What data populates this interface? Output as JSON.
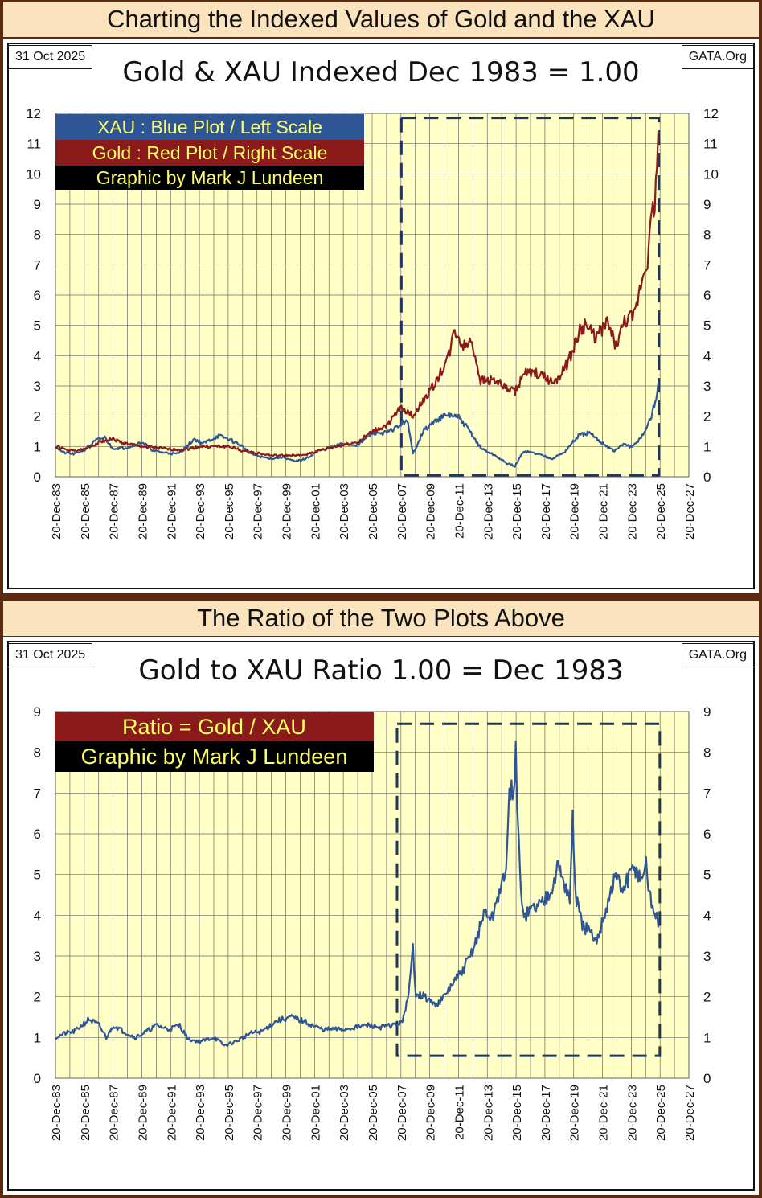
{
  "top_banner": "Charting the Indexed Values of Gold and the XAU",
  "mid_banner": "The Ratio of the Two Plots Above",
  "colors": {
    "xau": "#2e5596",
    "gold": "#8b1a1a",
    "plot_bg": "#ffffc6",
    "box": "#1f3658",
    "legend_blue": "#2e5596",
    "legend_red": "#8b1a1a",
    "legend_black": "#000000",
    "legend_text": "#ffff66"
  },
  "chart1": {
    "date": "31 Oct 2025",
    "site": "GATA.Org",
    "title": "Gold & XAU Indexed Dec 1983 = 1.00",
    "legend": [
      "XAU : Blue Plot / Left Scale",
      "Gold : Red Plot / Right Scale",
      "Graphic by Mark J Lundeen"
    ]
  },
  "chart2": {
    "date": "31 Oct 2025",
    "site": "GATA.Org",
    "title": "Gold to XAU Ratio 1.00 = Dec 1983",
    "legend": [
      "Ratio = Gold / XAU",
      "Graphic by Mark J Lundeen"
    ]
  },
  "chart_data": [
    {
      "type": "line",
      "title": "Gold & XAU Indexed Dec 1983 = 1.00",
      "ylim": [
        0,
        12
      ],
      "y_ticks": [
        0,
        1,
        2,
        3,
        4,
        5,
        6,
        7,
        8,
        9,
        10,
        11,
        12
      ],
      "x_range": [
        1983.97,
        2027.97
      ],
      "x_ticks": [
        "20-Dec-83",
        "20-Dec-85",
        "20-Dec-87",
        "20-Dec-89",
        "20-Dec-91",
        "20-Dec-93",
        "20-Dec-95",
        "20-Dec-97",
        "20-Dec-99",
        "20-Dec-01",
        "20-Dec-03",
        "20-Dec-05",
        "20-Dec-07",
        "20-Dec-09",
        "20-Dec-11",
        "20-Dec-13",
        "20-Dec-15",
        "20-Dec-17",
        "20-Dec-19",
        "20-Dec-21",
        "20-Dec-23",
        "20-Dec-25",
        "20-Dec-27"
      ],
      "highlight_box": {
        "x": [
          2008.0,
          2025.9
        ],
        "y": [
          0.05,
          11.85
        ]
      },
      "series": [
        {
          "name": "XAU",
          "color": "#2e5596",
          "points": [
            [
              1984.0,
              1.0
            ],
            [
              1984.5,
              0.8
            ],
            [
              1985.3,
              0.75
            ],
            [
              1986.0,
              0.9
            ],
            [
              1986.8,
              1.2
            ],
            [
              1987.4,
              1.3
            ],
            [
              1987.9,
              0.95
            ],
            [
              1988.7,
              0.95
            ],
            [
              1989.5,
              1.05
            ],
            [
              1990.0,
              1.15
            ],
            [
              1990.8,
              0.85
            ],
            [
              1991.5,
              0.8
            ],
            [
              1992.4,
              0.75
            ],
            [
              1993.0,
              0.95
            ],
            [
              1993.6,
              1.25
            ],
            [
              1994.2,
              1.1
            ],
            [
              1995.3,
              1.35
            ],
            [
              1996.0,
              1.25
            ],
            [
              1996.8,
              1.05
            ],
            [
              1997.6,
              0.75
            ],
            [
              1998.3,
              0.65
            ],
            [
              1999.0,
              0.6
            ],
            [
              1999.8,
              0.65
            ],
            [
              2000.6,
              0.5
            ],
            [
              2001.4,
              0.6
            ],
            [
              2002.2,
              0.85
            ],
            [
              2003.0,
              0.95
            ],
            [
              2004.0,
              1.1
            ],
            [
              2005.0,
              1.05
            ],
            [
              2006.0,
              1.45
            ],
            [
              2007.0,
              1.45
            ],
            [
              2007.9,
              1.7
            ],
            [
              2008.4,
              1.9
            ],
            [
              2008.8,
              0.75
            ],
            [
              2009.5,
              1.5
            ],
            [
              2010.5,
              1.9
            ],
            [
              2011.3,
              2.05
            ],
            [
              2012.0,
              1.95
            ],
            [
              2012.7,
              1.55
            ],
            [
              2013.5,
              0.95
            ],
            [
              2014.5,
              0.7
            ],
            [
              2015.3,
              0.45
            ],
            [
              2015.9,
              0.35
            ],
            [
              2016.5,
              0.85
            ],
            [
              2017.5,
              0.75
            ],
            [
              2018.5,
              0.6
            ],
            [
              2019.3,
              0.8
            ],
            [
              2020.3,
              1.35
            ],
            [
              2021.0,
              1.45
            ],
            [
              2021.7,
              1.2
            ],
            [
              2022.8,
              0.85
            ],
            [
              2023.5,
              1.1
            ],
            [
              2024.0,
              0.95
            ],
            [
              2024.8,
              1.4
            ],
            [
              2025.3,
              1.9
            ],
            [
              2025.7,
              2.6
            ],
            [
              2025.85,
              3.1
            ]
          ]
        },
        {
          "name": "Gold",
          "color": "#8b1a1a",
          "points": [
            [
              1984.0,
              1.0
            ],
            [
              1985.0,
              0.85
            ],
            [
              1986.0,
              0.9
            ],
            [
              1987.0,
              1.15
            ],
            [
              1987.9,
              1.25
            ],
            [
              1988.8,
              1.1
            ],
            [
              1990.0,
              1.0
            ],
            [
              1991.0,
              0.95
            ],
            [
              1992.0,
              0.9
            ],
            [
              1993.0,
              0.9
            ],
            [
              1994.0,
              1.0
            ],
            [
              1995.0,
              1.0
            ],
            [
              1996.0,
              1.0
            ],
            [
              1997.0,
              0.85
            ],
            [
              1998.0,
              0.78
            ],
            [
              1999.0,
              0.7
            ],
            [
              2000.0,
              0.7
            ],
            [
              2001.0,
              0.7
            ],
            [
              2002.0,
              0.82
            ],
            [
              2003.0,
              0.95
            ],
            [
              2004.0,
              1.05
            ],
            [
              2005.0,
              1.15
            ],
            [
              2006.0,
              1.5
            ],
            [
              2007.0,
              1.7
            ],
            [
              2008.0,
              2.3
            ],
            [
              2008.8,
              2.0
            ],
            [
              2009.5,
              2.5
            ],
            [
              2010.5,
              3.2
            ],
            [
              2011.3,
              4.0
            ],
            [
              2011.7,
              4.85
            ],
            [
              2012.3,
              4.3
            ],
            [
              2012.9,
              4.5
            ],
            [
              2013.5,
              3.2
            ],
            [
              2014.5,
              3.2
            ],
            [
              2015.3,
              2.9
            ],
            [
              2015.9,
              2.8
            ],
            [
              2016.5,
              3.4
            ],
            [
              2017.5,
              3.4
            ],
            [
              2018.6,
              3.1
            ],
            [
              2019.5,
              3.7
            ],
            [
              2020.4,
              4.8
            ],
            [
              2020.8,
              5.0
            ],
            [
              2021.5,
              4.6
            ],
            [
              2022.3,
              5.1
            ],
            [
              2022.9,
              4.3
            ],
            [
              2023.5,
              5.1
            ],
            [
              2024.2,
              5.3
            ],
            [
              2024.7,
              6.5
            ],
            [
              2025.1,
              7.2
            ],
            [
              2025.4,
              8.6
            ],
            [
              2025.6,
              9.0
            ],
            [
              2025.75,
              10.2
            ],
            [
              2025.85,
              11.4
            ]
          ]
        }
      ]
    },
    {
      "type": "line",
      "title": "Gold to XAU Ratio 1.00 = Dec 1983",
      "ylim": [
        0,
        9
      ],
      "y_ticks": [
        0,
        1,
        2,
        3,
        4,
        5,
        6,
        7,
        8,
        9
      ],
      "x_range": [
        1983.97,
        2027.97
      ],
      "x_ticks": [
        "20-Dec-83",
        "20-Dec-85",
        "20-Dec-87",
        "20-Dec-89",
        "20-Dec-91",
        "20-Dec-93",
        "20-Dec-95",
        "20-Dec-97",
        "20-Dec-99",
        "20-Dec-01",
        "20-Dec-03",
        "20-Dec-05",
        "20-Dec-07",
        "20-Dec-09",
        "20-Dec-11",
        "20-Dec-13",
        "20-Dec-15",
        "20-Dec-17",
        "20-Dec-19",
        "20-Dec-21",
        "20-Dec-23",
        "20-Dec-25",
        "20-Dec-27"
      ],
      "highlight_box": {
        "x": [
          2007.7,
          2025.95
        ],
        "y": [
          0.55,
          8.7
        ]
      },
      "series": [
        {
          "name": "Ratio",
          "color": "#2e5596",
          "points": [
            [
              1984.0,
              1.0
            ],
            [
              1984.6,
              1.1
            ],
            [
              1985.3,
              1.15
            ],
            [
              1986.3,
              1.45
            ],
            [
              1987.0,
              1.3
            ],
            [
              1987.5,
              1.0
            ],
            [
              1988.0,
              1.3
            ],
            [
              1988.7,
              1.15
            ],
            [
              1989.5,
              1.0
            ],
            [
              1990.3,
              1.15
            ],
            [
              1991.0,
              1.3
            ],
            [
              1991.8,
              1.2
            ],
            [
              1992.6,
              1.3
            ],
            [
              1993.2,
              0.95
            ],
            [
              1994.0,
              0.9
            ],
            [
              1995.0,
              1.0
            ],
            [
              1995.7,
              0.8
            ],
            [
              1996.5,
              0.9
            ],
            [
              1997.5,
              1.1
            ],
            [
              1998.3,
              1.15
            ],
            [
              1999.3,
              1.4
            ],
            [
              2000.3,
              1.5
            ],
            [
              2001.2,
              1.4
            ],
            [
              2001.8,
              1.3
            ],
            [
              2002.5,
              1.2
            ],
            [
              2003.3,
              1.2
            ],
            [
              2004.0,
              1.2
            ],
            [
              2004.8,
              1.25
            ],
            [
              2005.7,
              1.3
            ],
            [
              2006.5,
              1.25
            ],
            [
              2007.4,
              1.3
            ],
            [
              2008.0,
              1.35
            ],
            [
              2008.5,
              2.0
            ],
            [
              2008.8,
              3.2
            ],
            [
              2009.0,
              2.1
            ],
            [
              2009.6,
              2.0
            ],
            [
              2010.3,
              1.8
            ],
            [
              2010.9,
              1.95
            ],
            [
              2011.5,
              2.3
            ],
            [
              2012.2,
              2.6
            ],
            [
              2012.8,
              3.0
            ],
            [
              2013.3,
              3.5
            ],
            [
              2013.8,
              4.1
            ],
            [
              2014.3,
              3.9
            ],
            [
              2014.8,
              4.6
            ],
            [
              2015.2,
              4.9
            ],
            [
              2015.5,
              6.8
            ],
            [
              2015.8,
              7.2
            ],
            [
              2015.95,
              7.9
            ],
            [
              2016.1,
              6.2
            ],
            [
              2016.3,
              4.5
            ],
            [
              2016.6,
              4.0
            ],
            [
              2017.2,
              4.2
            ],
            [
              2017.8,
              4.3
            ],
            [
              2018.4,
              4.7
            ],
            [
              2018.9,
              5.2
            ],
            [
              2019.3,
              4.8
            ],
            [
              2019.7,
              4.4
            ],
            [
              2019.9,
              6.3
            ],
            [
              2020.1,
              4.5
            ],
            [
              2020.5,
              3.8
            ],
            [
              2021.0,
              3.6
            ],
            [
              2021.5,
              3.3
            ],
            [
              2022.0,
              3.9
            ],
            [
              2022.5,
              4.5
            ],
            [
              2022.9,
              5.0
            ],
            [
              2023.3,
              4.6
            ],
            [
              2023.8,
              4.9
            ],
            [
              2024.2,
              5.2
            ],
            [
              2024.6,
              4.9
            ],
            [
              2025.0,
              5.2
            ],
            [
              2025.3,
              4.4
            ],
            [
              2025.6,
              4.1
            ],
            [
              2025.85,
              3.7
            ]
          ]
        }
      ]
    }
  ]
}
